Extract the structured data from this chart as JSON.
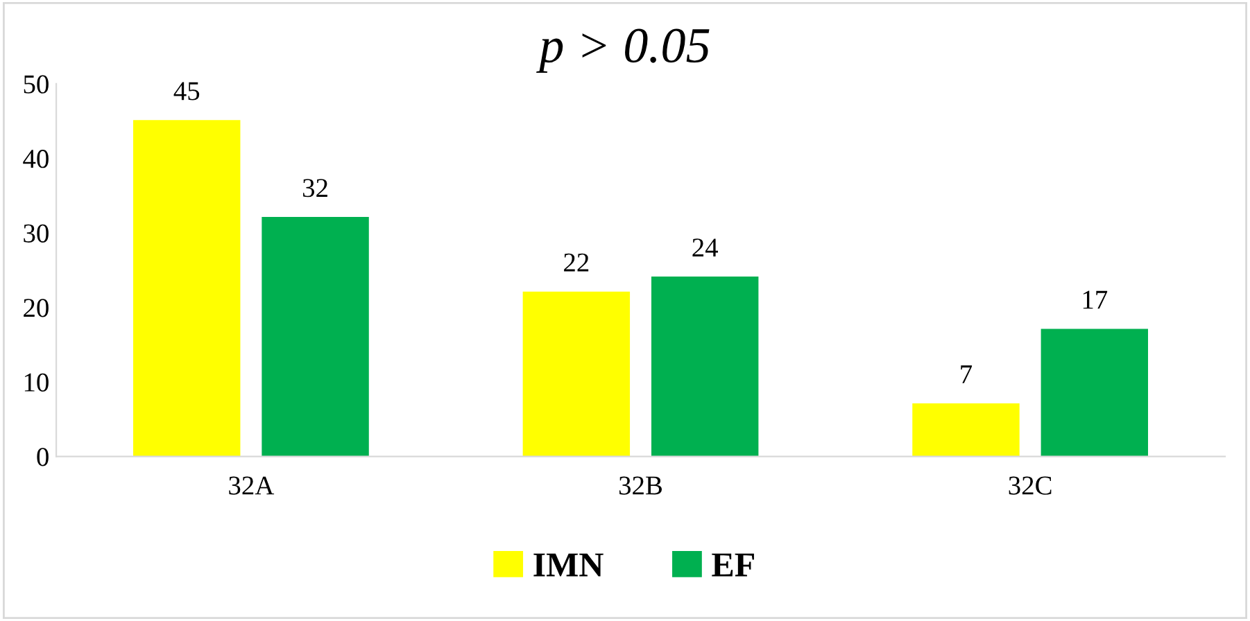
{
  "chart_data": {
    "type": "bar",
    "title": "p > 0.05",
    "categories": [
      "32A",
      "32B",
      "32C"
    ],
    "series": [
      {
        "name": "IMN",
        "color": "#ffff00",
        "values": [
          45,
          22,
          7
        ]
      },
      {
        "name": "EF",
        "color": "#00b050",
        "values": [
          32,
          24,
          17
        ]
      }
    ],
    "ylim": [
      0,
      50
    ],
    "yticks": [
      0,
      10,
      20,
      30,
      40,
      50
    ],
    "data_labels": true,
    "grid": false,
    "legend": "bottom"
  }
}
